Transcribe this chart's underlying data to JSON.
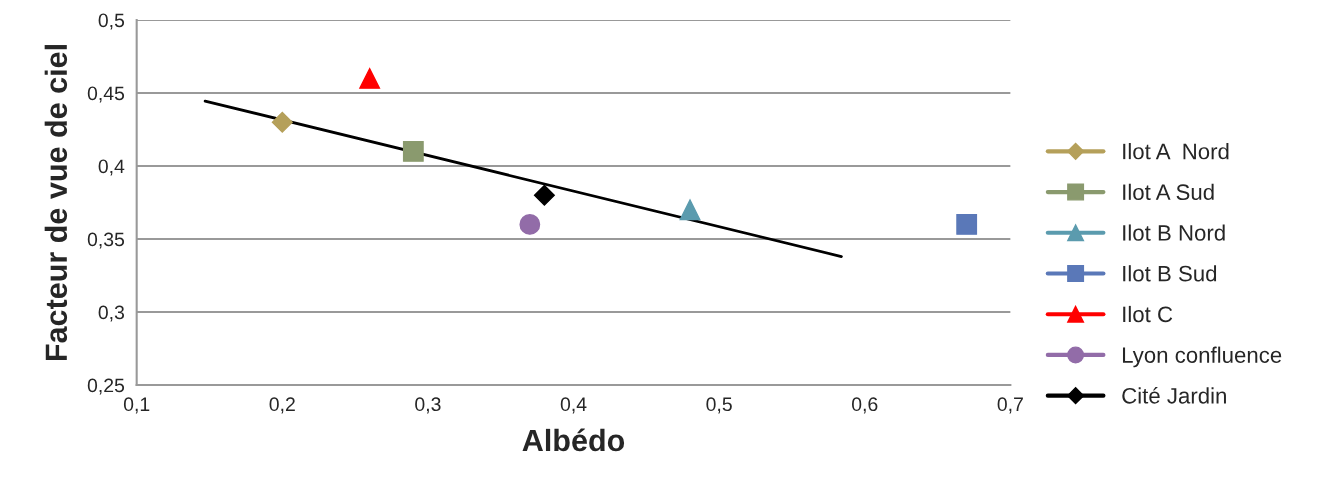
{
  "chart_data": {
    "type": "scatter",
    "xlabel": "Albédo",
    "ylabel": "Facteur de vue de ciel",
    "xlim": [
      0.1,
      0.7
    ],
    "ylim": [
      0.25,
      0.5
    ],
    "xticks": [
      {
        "value": 0.1,
        "label": "0,1"
      },
      {
        "value": 0.2,
        "label": "0,2"
      },
      {
        "value": 0.3,
        "label": "0,3"
      },
      {
        "value": 0.4,
        "label": "0,4"
      },
      {
        "value": 0.5,
        "label": "0,5"
      },
      {
        "value": 0.6,
        "label": "0,6"
      },
      {
        "value": 0.7,
        "label": "0,7"
      }
    ],
    "yticks": [
      {
        "value": 0.25,
        "label": "0,25"
      },
      {
        "value": 0.3,
        "label": "0,3"
      },
      {
        "value": 0.35,
        "label": "0,35"
      },
      {
        "value": 0.4,
        "label": "0,4"
      },
      {
        "value": 0.45,
        "label": "0,45"
      },
      {
        "value": 0.5,
        "label": "0,5"
      }
    ],
    "grid": "y",
    "legend": "right",
    "series": [
      {
        "name": "Ilot A  Nord",
        "color": "#b5a05a",
        "marker": "diamond",
        "x": [
          0.2
        ],
        "values": [
          0.43
        ]
      },
      {
        "name": "Ilot A Sud",
        "color": "#8a9a6e",
        "marker": "square",
        "x": [
          0.29
        ],
        "values": [
          0.41
        ]
      },
      {
        "name": "Ilot B Nord",
        "color": "#5b9bae",
        "marker": "triangle",
        "x": [
          0.48
        ],
        "values": [
          0.37
        ]
      },
      {
        "name": "Ilot B Sud",
        "color": "#5a78b8",
        "marker": "square",
        "x": [
          0.67
        ],
        "values": [
          0.36
        ]
      },
      {
        "name": "Ilot C",
        "color": "#ff0000",
        "marker": "triangle",
        "x": [
          0.26
        ],
        "values": [
          0.46
        ]
      },
      {
        "name": "Lyon confluence",
        "color": "#926ca8",
        "marker": "circle",
        "x": [
          0.37
        ],
        "values": [
          0.36
        ]
      },
      {
        "name": "Cité Jardin",
        "color": "#000000",
        "marker": "diamond",
        "x": [
          0.38
        ],
        "values": [
          0.38
        ]
      },
      {
        "type": "line",
        "color": "#000000",
        "marker": "none",
        "x": [
          0.147,
          0.584
        ],
        "values": [
          0.4445,
          0.338
        ]
      }
    ]
  }
}
